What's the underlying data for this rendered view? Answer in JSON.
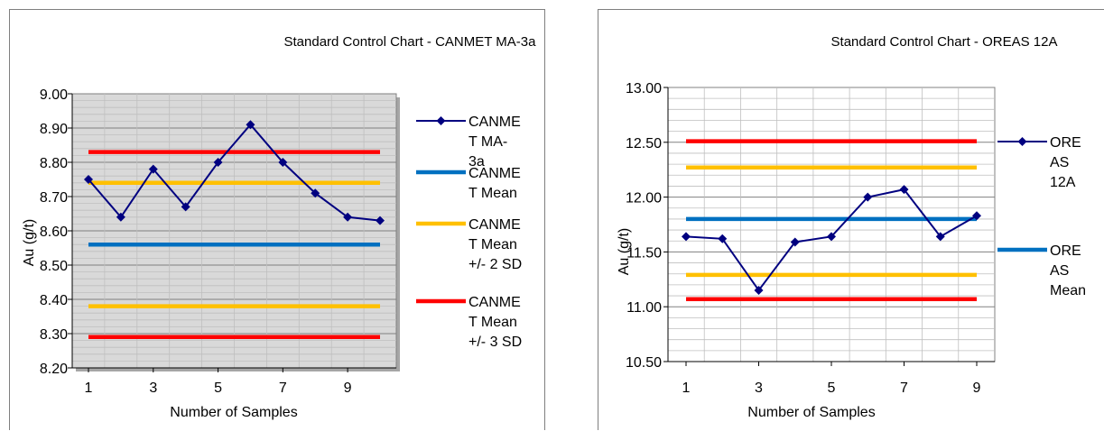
{
  "chart_data": [
    {
      "type": "line",
      "title": "Standard Control Chart - CANMET MA-3a",
      "xlabel": "Number of Samples",
      "ylabel": "Au (g/t)",
      "ylim": [
        8.2,
        9.0
      ],
      "yticks": [
        "8.20",
        "8.30",
        "8.40",
        "8.50",
        "8.60",
        "8.70",
        "8.80",
        "8.90",
        "9.00"
      ],
      "xticks": [
        "1",
        "3",
        "5",
        "7",
        "9"
      ],
      "x": [
        1,
        2,
        3,
        4,
        5,
        6,
        7,
        8,
        9,
        10
      ],
      "grid": true,
      "plot_background": "#d9d9d9",
      "legend_position": "right",
      "series": [
        {
          "name": "CANMET MA-3a",
          "legend_lines": [
            "CANME",
            "T MA-",
            "3a"
          ],
          "color": "#000080",
          "marker": "diamond",
          "values": [
            8.75,
            8.64,
            8.78,
            8.67,
            8.8,
            8.91,
            8.8,
            8.71,
            8.64,
            8.63
          ]
        },
        {
          "name": "CANMET Mean",
          "legend_lines": [
            "CANME",
            "T Mean"
          ],
          "color": "#0070c0",
          "constant": 8.56
        },
        {
          "name": "CANMET Mean +/- 2 SD",
          "legend_lines": [
            "CANME",
            "T Mean",
            "+/- 2 SD"
          ],
          "color": "#ffc000",
          "constants": [
            8.74,
            8.38
          ]
        },
        {
          "name": "CANMET Mean +/- 3 SD",
          "legend_lines": [
            "CANME",
            "T Mean",
            "+/- 3 SD"
          ],
          "color": "#ff0000",
          "constants": [
            8.83,
            8.29
          ]
        }
      ]
    },
    {
      "type": "line",
      "title": "Standard Control Chart - OREAS 12A",
      "xlabel": "Number of Samples",
      "ylabel": "Au (g/t)",
      "ylim": [
        10.5,
        13.0
      ],
      "yticks": [
        "10.50",
        "11.00",
        "11.50",
        "12.00",
        "12.50",
        "13.00"
      ],
      "xticks": [
        "1",
        "3",
        "5",
        "7",
        "9"
      ],
      "x": [
        1,
        2,
        3,
        4,
        5,
        6,
        7,
        8,
        9
      ],
      "grid": true,
      "plot_background": "#ffffff",
      "legend_position": "right",
      "series": [
        {
          "name": "OREAS 12A",
          "legend_lines": [
            "ORE",
            "AS",
            "12A"
          ],
          "color": "#000080",
          "marker": "diamond",
          "values": [
            11.64,
            11.62,
            11.15,
            11.59,
            11.64,
            12.0,
            12.07,
            11.64,
            11.83
          ]
        },
        {
          "name": "OREAS Mean",
          "legend_lines": [
            "ORE",
            "AS",
            "Mean"
          ],
          "color": "#0070c0",
          "constant": 11.8
        },
        {
          "name": "",
          "color": "#ffc000",
          "constants": [
            12.27,
            11.29
          ]
        },
        {
          "name": "",
          "color": "#ff0000",
          "constants": [
            12.51,
            11.07
          ]
        }
      ]
    }
  ]
}
